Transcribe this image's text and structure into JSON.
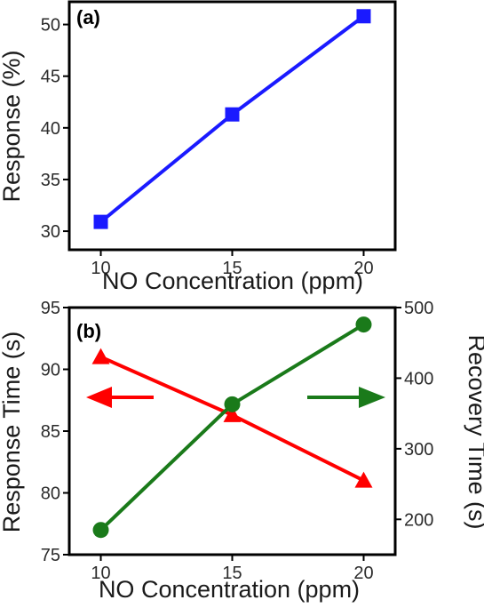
{
  "chart_data": [
    {
      "type": "line",
      "panel_label": "(a)",
      "xlabel": "NO Concentration (ppm)",
      "ylabel": "Response (%)",
      "x": [
        10,
        15,
        20
      ],
      "xlim": [
        8.8,
        21.2
      ],
      "ylim": [
        28.2,
        52.2
      ],
      "xticks": [
        "10",
        "15",
        "20"
      ],
      "yticks": [
        "30",
        "35",
        "40",
        "45",
        "50"
      ],
      "series": [
        {
          "values": [
            30.9,
            41.3,
            50.8
          ],
          "color": "#1a1aff",
          "marker": "square"
        }
      ]
    },
    {
      "type": "line",
      "panel_label": "(b)",
      "xlabel": "NO Concentration (ppm)",
      "ylabel_left": "Response Time (s)",
      "ylabel_right": "Recovery Time (s)",
      "x": [
        10,
        15,
        20
      ],
      "xlim": [
        8.8,
        21.2
      ],
      "ylim_left": [
        75,
        95
      ],
      "ylim_right": [
        150,
        500
      ],
      "xticks": [
        "10",
        "15",
        "20"
      ],
      "yticks_left": [
        "75",
        "80",
        "85",
        "90",
        "95"
      ],
      "yticks_right": [
        "200",
        "300",
        "400",
        "500"
      ],
      "series": [
        {
          "axis": "left",
          "values": [
            91.0,
            86.3,
            81.0
          ],
          "color": "#ff0000",
          "marker": "triangle"
        },
        {
          "axis": "right",
          "values": [
            185,
            363,
            476
          ],
          "color": "#1a7a1a",
          "marker": "circle"
        }
      ],
      "annotations": [
        {
          "type": "arrow",
          "direction": "left",
          "color": "#ff0000",
          "points_to": "left-axis"
        },
        {
          "type": "arrow",
          "direction": "right",
          "color": "#1a7a1a",
          "points_to": "right-axis"
        }
      ]
    }
  ]
}
